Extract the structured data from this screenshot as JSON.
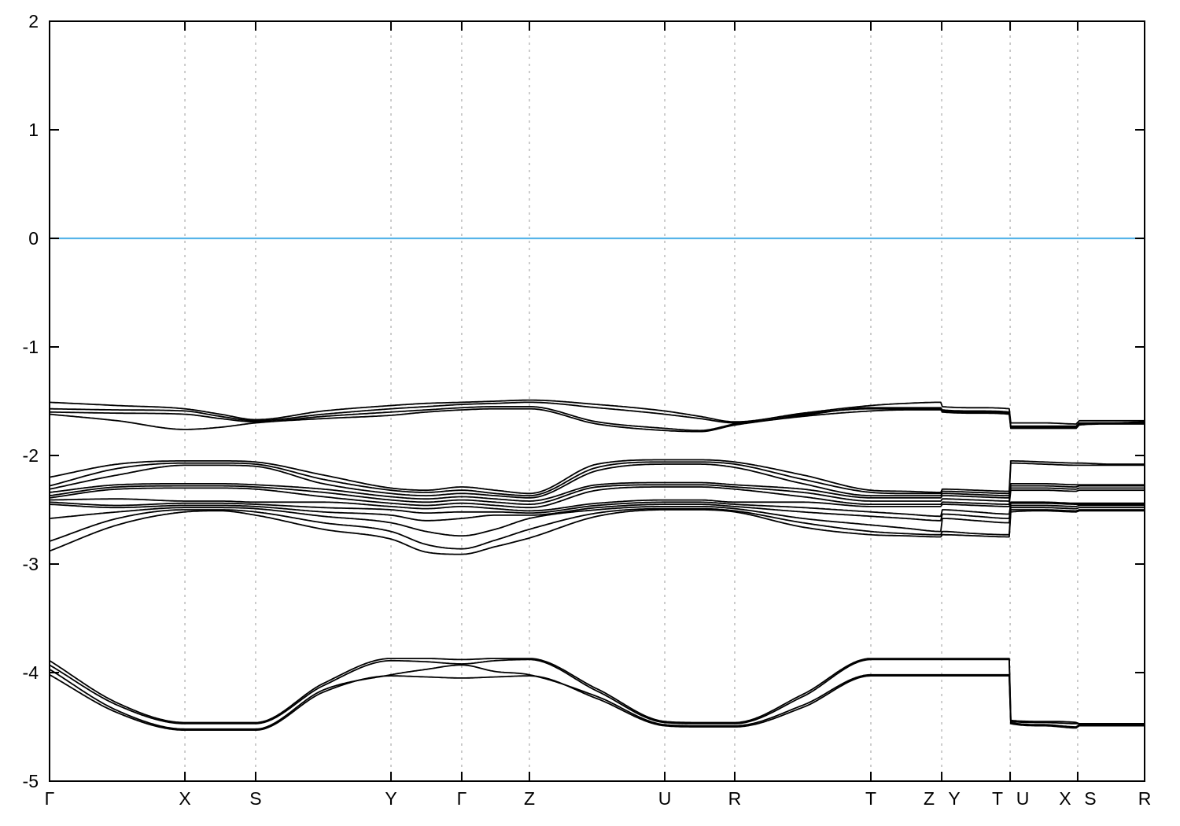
{
  "figure": {
    "background": "#ffffff",
    "kind": "electronic band structure plot"
  },
  "chart_data": {
    "type": "line",
    "subtype": "band-structure",
    "title": "",
    "xlabel": "",
    "ylabel": "",
    "ylim": [
      -5,
      2
    ],
    "yticks": [
      2,
      1,
      0,
      -1,
      -2,
      -3,
      -4,
      -5
    ],
    "xticks": [
      {
        "x": 0.0,
        "labels": [
          "Γ"
        ]
      },
      {
        "x": 0.1236,
        "labels": [
          "X"
        ]
      },
      {
        "x": 0.1882,
        "labels": [
          "S"
        ]
      },
      {
        "x": 0.3118,
        "labels": [
          "Y"
        ]
      },
      {
        "x": 0.3764,
        "labels": [
          "Γ"
        ]
      },
      {
        "x": 0.4382,
        "labels": [
          "Z"
        ]
      },
      {
        "x": 0.5618,
        "labels": [
          "U"
        ]
      },
      {
        "x": 0.6257,
        "labels": [
          "R"
        ]
      },
      {
        "x": 0.75,
        "labels": [
          "T"
        ]
      },
      {
        "x": 0.8147,
        "labels": [
          "Z",
          "Y"
        ]
      },
      {
        "x": 0.8772,
        "labels": [
          "T",
          "U"
        ]
      },
      {
        "x": 0.9389,
        "labels": [
          "X",
          "S"
        ]
      },
      {
        "x": 1.0,
        "labels": [
          "R"
        ]
      }
    ],
    "grid": {
      "vertical_at_xticks": true,
      "style": "dotted",
      "color": "#9a9a9a"
    },
    "legend": null,
    "fermi_level": 0,
    "colors": {
      "fermi": "#56b4e9",
      "bands": "#000000",
      "axis": "#000000"
    },
    "band_x": [
      0,
      0.062,
      0.1236,
      0.156,
      0.1882,
      0.25,
      0.3118,
      0.344,
      0.3764,
      0.407,
      0.4382,
      0.5,
      0.5618,
      0.594,
      0.6257,
      0.688,
      0.75,
      0.782,
      0.8142,
      0.8152,
      0.846,
      0.8767,
      0.8777,
      0.908,
      0.9384,
      0.9394,
      0.969,
      1.0
    ],
    "bands": [
      [
        -1.51,
        -1.54,
        -1.57,
        -1.62,
        -1.67,
        -1.59,
        -1.54,
        -1.52,
        -1.51,
        -1.5,
        -1.49,
        -1.53,
        -1.59,
        -1.64,
        -1.69,
        -1.61,
        -1.54,
        -1.52,
        -1.51,
        -1.55,
        -1.56,
        -1.57,
        -1.7,
        -1.7,
        -1.71,
        -1.68,
        -1.68,
        -1.68
      ],
      [
        -1.57,
        -1.58,
        -1.59,
        -1.64,
        -1.68,
        -1.62,
        -1.57,
        -1.55,
        -1.53,
        -1.52,
        -1.51,
        -1.56,
        -1.62,
        -1.66,
        -1.7,
        -1.63,
        -1.56,
        -1.56,
        -1.56,
        -1.58,
        -1.59,
        -1.6,
        -1.73,
        -1.73,
        -1.73,
        -1.7,
        -1.7,
        -1.69
      ],
      [
        -1.6,
        -1.61,
        -1.62,
        -1.66,
        -1.69,
        -1.64,
        -1.6,
        -1.58,
        -1.56,
        -1.55,
        -1.55,
        -1.69,
        -1.75,
        -1.77,
        -1.71,
        -1.62,
        -1.57,
        -1.57,
        -1.57,
        -1.59,
        -1.6,
        -1.61,
        -1.74,
        -1.74,
        -1.74,
        -1.71,
        -1.7,
        -1.7
      ],
      [
        -1.62,
        -1.68,
        -1.76,
        -1.74,
        -1.7,
        -1.66,
        -1.63,
        -1.6,
        -1.58,
        -1.57,
        -1.57,
        -1.71,
        -1.77,
        -1.78,
        -1.72,
        -1.64,
        -1.59,
        -1.58,
        -1.58,
        -1.6,
        -1.61,
        -1.62,
        -1.75,
        -1.75,
        -1.75,
        -1.72,
        -1.71,
        -1.71
      ],
      [
        -2.2,
        -2.08,
        -2.05,
        -2.05,
        -2.06,
        -2.18,
        -2.3,
        -2.32,
        -2.29,
        -2.32,
        -2.35,
        -2.08,
        -2.04,
        -2.04,
        -2.06,
        -2.18,
        -2.32,
        -2.33,
        -2.34,
        -2.31,
        -2.32,
        -2.33,
        -2.05,
        -2.06,
        -2.07,
        -2.07,
        -2.08,
        -2.08
      ],
      [
        -2.28,
        -2.12,
        -2.07,
        -2.07,
        -2.08,
        -2.22,
        -2.32,
        -2.34,
        -2.32,
        -2.35,
        -2.37,
        -2.11,
        -2.06,
        -2.06,
        -2.08,
        -2.22,
        -2.34,
        -2.35,
        -2.35,
        -2.33,
        -2.34,
        -2.35,
        -2.07,
        -2.08,
        -2.09,
        -2.09,
        -2.09,
        -2.09
      ],
      [
        -2.31,
        -2.18,
        -2.09,
        -2.09,
        -2.1,
        -2.26,
        -2.35,
        -2.37,
        -2.35,
        -2.37,
        -2.39,
        -2.14,
        -2.08,
        -2.08,
        -2.11,
        -2.26,
        -2.37,
        -2.37,
        -2.37,
        -2.35,
        -2.36,
        -2.37,
        -2.26,
        -2.26,
        -2.27,
        -2.27,
        -2.27,
        -2.27
      ],
      [
        -2.34,
        -2.27,
        -2.26,
        -2.26,
        -2.27,
        -2.31,
        -2.38,
        -2.4,
        -2.38,
        -2.4,
        -2.42,
        -2.27,
        -2.25,
        -2.25,
        -2.27,
        -2.31,
        -2.39,
        -2.39,
        -2.39,
        -2.37,
        -2.38,
        -2.39,
        -2.28,
        -2.28,
        -2.29,
        -2.28,
        -2.28,
        -2.28
      ],
      [
        -2.37,
        -2.29,
        -2.28,
        -2.28,
        -2.29,
        -2.34,
        -2.41,
        -2.43,
        -2.41,
        -2.43,
        -2.45,
        -2.29,
        -2.27,
        -2.27,
        -2.29,
        -2.34,
        -2.42,
        -2.42,
        -2.42,
        -2.4,
        -2.41,
        -2.42,
        -2.3,
        -2.3,
        -2.31,
        -2.3,
        -2.3,
        -2.3
      ],
      [
        -2.39,
        -2.31,
        -2.3,
        -2.3,
        -2.31,
        -2.38,
        -2.44,
        -2.46,
        -2.44,
        -2.46,
        -2.48,
        -2.32,
        -2.29,
        -2.29,
        -2.31,
        -2.38,
        -2.45,
        -2.45,
        -2.45,
        -2.43,
        -2.44,
        -2.45,
        -2.32,
        -2.32,
        -2.33,
        -2.32,
        -2.32,
        -2.32
      ],
      [
        -2.41,
        -2.4,
        -2.42,
        -2.42,
        -2.43,
        -2.43,
        -2.47,
        -2.49,
        -2.47,
        -2.49,
        -2.51,
        -2.44,
        -2.41,
        -2.41,
        -2.43,
        -2.43,
        -2.47,
        -2.47,
        -2.47,
        -2.45,
        -2.46,
        -2.47,
        -2.43,
        -2.43,
        -2.44,
        -2.44,
        -2.44,
        -2.44
      ],
      [
        -2.43,
        -2.46,
        -2.44,
        -2.44,
        -2.45,
        -2.48,
        -2.5,
        -2.53,
        -2.52,
        -2.52,
        -2.53,
        -2.46,
        -2.43,
        -2.43,
        -2.45,
        -2.48,
        -2.52,
        -2.54,
        -2.56,
        -2.5,
        -2.52,
        -2.54,
        -2.44,
        -2.44,
        -2.45,
        -2.45,
        -2.45,
        -2.45
      ],
      [
        -2.45,
        -2.48,
        -2.46,
        -2.46,
        -2.47,
        -2.52,
        -2.55,
        -2.6,
        -2.58,
        -2.55,
        -2.55,
        -2.48,
        -2.45,
        -2.45,
        -2.47,
        -2.52,
        -2.56,
        -2.58,
        -2.6,
        -2.54,
        -2.56,
        -2.58,
        -2.46,
        -2.46,
        -2.47,
        -2.46,
        -2.46,
        -2.46
      ],
      [
        -2.58,
        -2.52,
        -2.48,
        -2.48,
        -2.49,
        -2.56,
        -2.62,
        -2.7,
        -2.74,
        -2.68,
        -2.58,
        -2.5,
        -2.47,
        -2.47,
        -2.49,
        -2.58,
        -2.64,
        -2.67,
        -2.7,
        -2.58,
        -2.6,
        -2.62,
        -2.48,
        -2.48,
        -2.49,
        -2.48,
        -2.48,
        -2.48
      ],
      [
        -2.79,
        -2.58,
        -2.5,
        -2.5,
        -2.52,
        -2.62,
        -2.7,
        -2.82,
        -2.86,
        -2.78,
        -2.68,
        -2.53,
        -2.49,
        -2.49,
        -2.51,
        -2.62,
        -2.7,
        -2.72,
        -2.73,
        -2.7,
        -2.72,
        -2.73,
        -2.5,
        -2.5,
        -2.51,
        -2.5,
        -2.5,
        -2.5
      ],
      [
        -2.88,
        -2.64,
        -2.52,
        -2.51,
        -2.55,
        -2.68,
        -2.77,
        -2.89,
        -2.91,
        -2.84,
        -2.76,
        -2.56,
        -2.5,
        -2.5,
        -2.52,
        -2.66,
        -2.73,
        -2.74,
        -2.75,
        -2.73,
        -2.74,
        -2.75,
        -2.52,
        -2.51,
        -2.52,
        -2.51,
        -2.51,
        -2.51
      ],
      [
        -3.89,
        -4.28,
        -4.46,
        -4.46,
        -4.46,
        -4.1,
        -3.87,
        -3.87,
        -3.88,
        -3.87,
        -3.87,
        -4.15,
        -4.45,
        -4.46,
        -4.46,
        -4.2,
        -3.87,
        -3.87,
        -3.87,
        -3.87,
        -3.87,
        -3.87,
        -4.44,
        -4.45,
        -4.46,
        -4.47,
        -4.47,
        -4.47
      ],
      [
        -3.93,
        -4.3,
        -4.47,
        -4.47,
        -4.47,
        -4.12,
        -3.89,
        -3.9,
        -3.92,
        -3.89,
        -3.88,
        -4.17,
        -4.46,
        -4.47,
        -4.47,
        -4.22,
        -3.88,
        -3.88,
        -3.88,
        -3.88,
        -3.88,
        -3.88,
        -4.45,
        -4.46,
        -4.47,
        -4.47,
        -4.48,
        -4.48
      ],
      [
        -3.97,
        -4.35,
        -4.52,
        -4.52,
        -4.52,
        -4.16,
        -4.02,
        -3.97,
        -3.93,
        -3.99,
        -4.02,
        -4.22,
        -4.48,
        -4.49,
        -4.49,
        -4.3,
        -4.02,
        -4.02,
        -4.02,
        -4.02,
        -4.02,
        -4.02,
        -4.46,
        -4.48,
        -4.5,
        -4.48,
        -4.48,
        -4.48
      ],
      [
        -4.02,
        -4.37,
        -4.53,
        -4.53,
        -4.53,
        -4.18,
        -4.03,
        -4.04,
        -4.05,
        -4.04,
        -4.03,
        -4.24,
        -4.49,
        -4.5,
        -4.5,
        -4.32,
        -4.03,
        -4.03,
        -4.03,
        -4.03,
        -4.03,
        -4.03,
        -4.47,
        -4.49,
        -4.51,
        -4.49,
        -4.49,
        -4.49
      ]
    ]
  }
}
